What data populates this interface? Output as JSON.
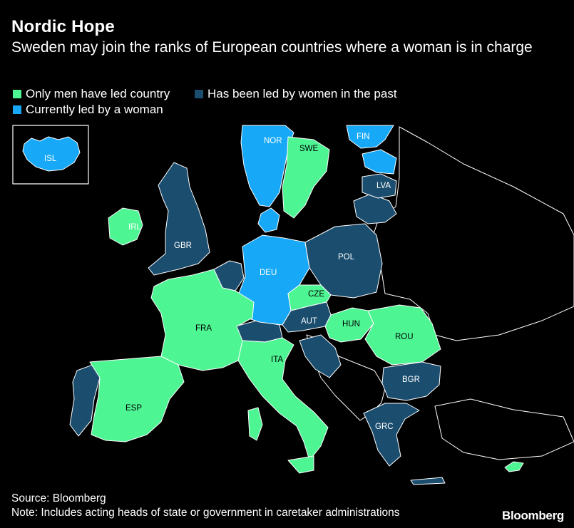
{
  "header": {
    "title": "Nordic Hope",
    "subtitle": "Sweden may join the ranks of European countries where a woman is in charge"
  },
  "legend": {
    "items": [
      {
        "label": "Only men have led country",
        "color": "#4df593"
      },
      {
        "label": "Has been led by women in the past",
        "color": "#1b4d6f"
      },
      {
        "label": "Currently led by a woman",
        "color": "#17a9f7"
      }
    ]
  },
  "colors": {
    "men_only": "#4df593",
    "past_women": "#1b4d6f",
    "current_woman": "#17a9f7",
    "other_land": "#000000",
    "border": "#ffffff",
    "background": "#000000"
  },
  "map": {
    "countries": [
      {
        "code": "ISL",
        "status": "current_woman"
      },
      {
        "code": "NOR",
        "status": "current_woman"
      },
      {
        "code": "SWE",
        "status": "men_only"
      },
      {
        "code": "FIN",
        "status": "current_woman"
      },
      {
        "code": "LVA",
        "status": "past_women"
      },
      {
        "code": "IRL",
        "status": "men_only"
      },
      {
        "code": "GBR",
        "status": "past_women"
      },
      {
        "code": "DEU",
        "status": "current_woman"
      },
      {
        "code": "POL",
        "status": "past_women"
      },
      {
        "code": "CZE",
        "status": "men_only"
      },
      {
        "code": "AUT",
        "status": "past_women"
      },
      {
        "code": "HUN",
        "status": "men_only"
      },
      {
        "code": "ROU",
        "status": "men_only"
      },
      {
        "code": "FRA",
        "status": "men_only"
      },
      {
        "code": "ITA",
        "status": "men_only"
      },
      {
        "code": "ESP",
        "status": "men_only"
      },
      {
        "code": "BGR",
        "status": "past_women"
      },
      {
        "code": "GRC",
        "status": "past_women"
      }
    ]
  },
  "footer": {
    "source": "Source: Bloomberg",
    "note": "Note: Includes acting heads of state or government in caretaker administrations",
    "brand": "Bloomberg"
  }
}
